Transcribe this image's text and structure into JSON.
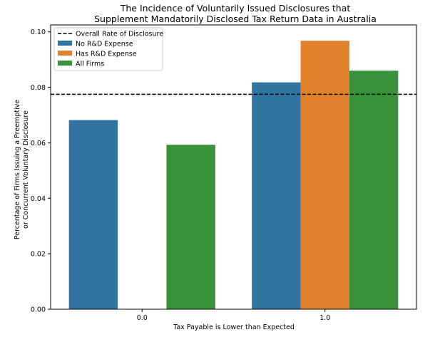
{
  "chart_data": {
    "type": "bar",
    "title": [
      "The Incidence of Voluntarily Issued Disclosures that",
      "Supplement Mandatorily Disclosed Tax Return Data in Australia"
    ],
    "xlabel": "Tax Payable is Lower than Expected",
    "ylabel": [
      "Percentage of Firms Issuing a Preemptive",
      "or Concurrent Voluntary Disclosure"
    ],
    "categories": [
      "0.0",
      "1.0"
    ],
    "series": [
      {
        "name": "No R&D Expense",
        "color": "#3274a1",
        "values": [
          0.0682,
          0.0818
        ]
      },
      {
        "name": "Has R&D Expense",
        "color": "#e1812c",
        "values": [
          0.0,
          0.0968
        ]
      },
      {
        "name": "All Firms",
        "color": "#3a923a",
        "values": [
          0.0593,
          0.086
        ]
      }
    ],
    "reference_line": {
      "name": "Overall Rate of Disclosure",
      "value": 0.0775,
      "style": "dashed",
      "color": "#000000"
    },
    "ylim": [
      0,
      0.1025
    ],
    "yticks": [
      "0.00",
      "0.02",
      "0.04",
      "0.06",
      "0.08",
      "0.10"
    ],
    "ytick_values": [
      0,
      0.02,
      0.04,
      0.06,
      0.08,
      0.1
    ],
    "grid": false,
    "legend_position": "top-left"
  }
}
